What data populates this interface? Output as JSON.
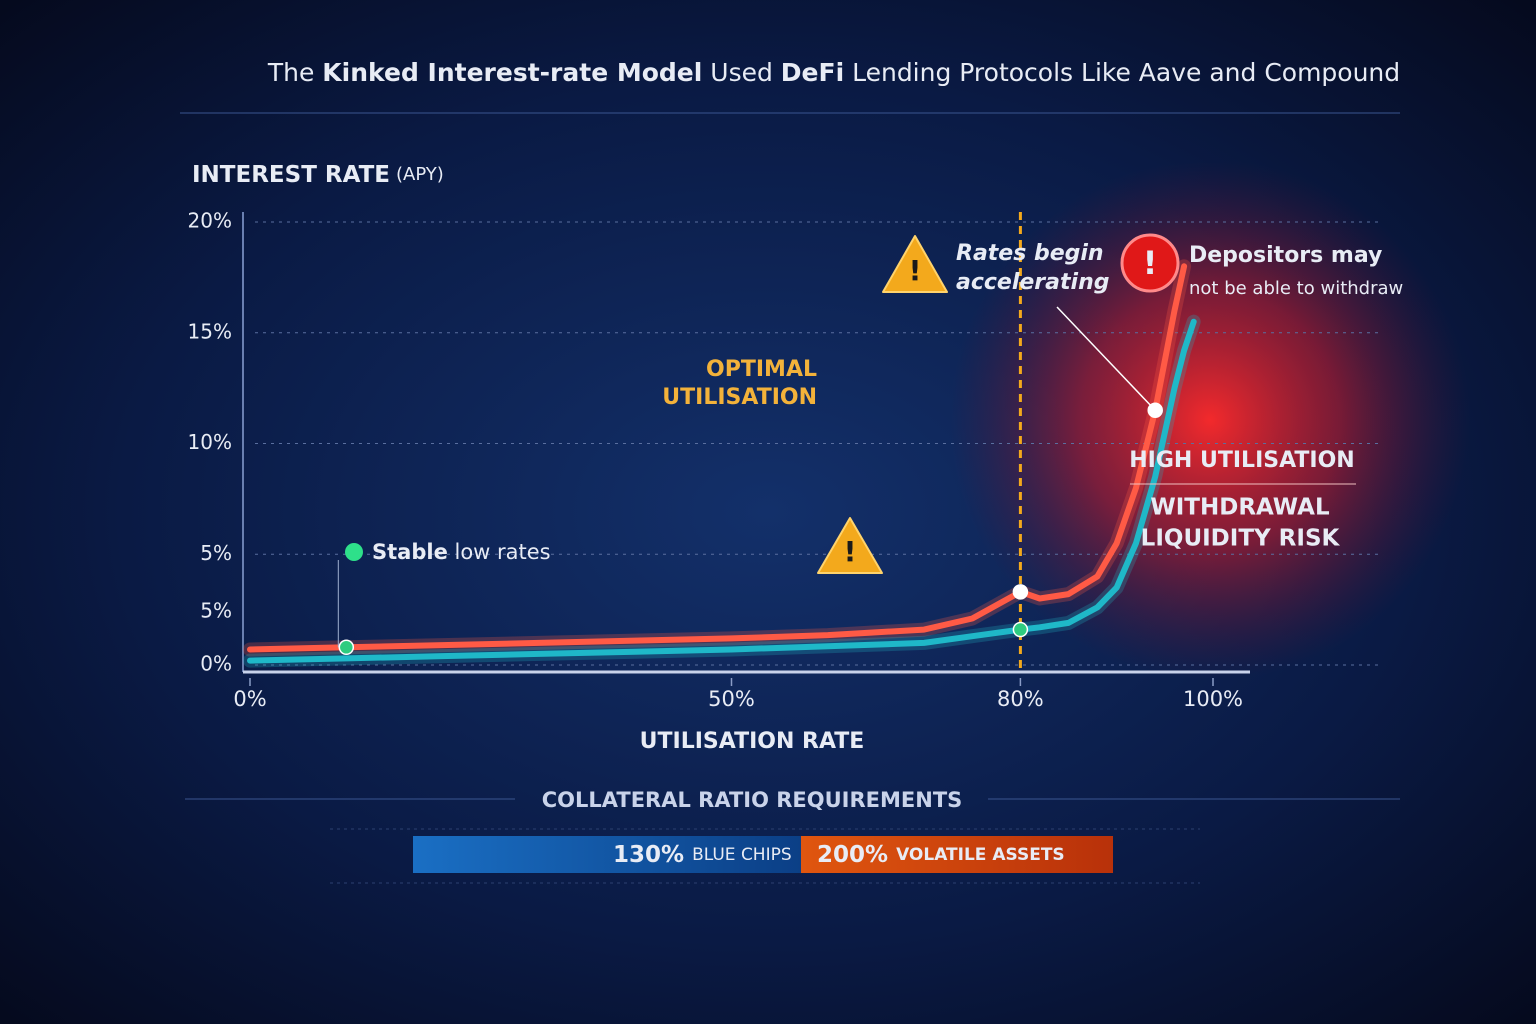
{
  "chart_data": {
    "type": "line",
    "title_parts": [
      "The ",
      "Kinked Interest-rate Model",
      " Used ",
      "DeFi",
      " Lending Protocols Like Aave and Compound"
    ],
    "y_axis_title": "INTEREST RATE",
    "y_axis_unit": "(APY)",
    "x_axis_title": "UTILISATION RATE",
    "x": [
      0,
      10,
      20,
      30,
      40,
      50,
      60,
      70,
      75,
      80,
      82,
      85,
      88,
      90,
      92,
      94,
      96,
      97,
      98
    ],
    "series": [
      {
        "color": "#ff5a45",
        "values": [
          0.7,
          0.8,
          0.9,
          1.0,
          1.1,
          1.2,
          1.35,
          1.6,
          2.1,
          3.3,
          3.0,
          3.2,
          4.0,
          5.5,
          8.0,
          11.5,
          16.0,
          18.0,
          null
        ]
      },
      {
        "color": "#1fb8c8",
        "values": [
          0.2,
          0.3,
          0.4,
          0.5,
          0.6,
          0.7,
          0.85,
          1.0,
          1.3,
          1.6,
          1.7,
          1.9,
          2.6,
          3.5,
          5.5,
          8.5,
          12.5,
          14.2,
          15.5
        ]
      }
    ],
    "xlim": [
      0,
      100
    ],
    "xticks": [
      {
        "value": 0,
        "label": "0%"
      },
      {
        "value": 50,
        "label": "50%"
      },
      {
        "value": 80,
        "label": "80%"
      },
      {
        "value": 100,
        "label": "100%"
      }
    ],
    "ylim": [
      0,
      20
    ],
    "yticks": [
      {
        "value": 0,
        "label": "0%"
      },
      {
        "value": 5,
        "label": "5%"
      },
      {
        "value": 10,
        "label": "10%"
      },
      {
        "value": 15,
        "label": "15%"
      },
      {
        "value": 20,
        "label": "20%"
      }
    ],
    "extra_y_label": "5%",
    "grid": true,
    "kink": 80,
    "kink_label": [
      "OPTIMAL",
      "UTILISATION"
    ],
    "stable_label": [
      "Stable",
      " low rates"
    ],
    "accelerating_label": [
      "Rates begin",
      "accelerating"
    ],
    "depositors_label": [
      "Depositors may",
      "not be able to withdraw"
    ],
    "risk_title": "HIGH UTILISATION",
    "risk_label": [
      "WITHDRAWAL",
      "LIQUIDITY RISK"
    ]
  },
  "collateral": {
    "title": "COLLATERAL RATIO REQUIREMENTS",
    "items": [
      {
        "ratio": "130%",
        "label": "BLUE CHIPS"
      },
      {
        "ratio": "200%",
        "label": "VOLATILE ASSETS"
      }
    ]
  }
}
